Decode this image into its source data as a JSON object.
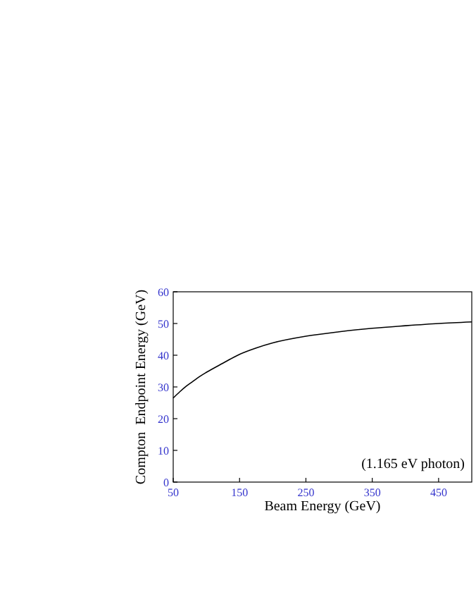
{
  "chart_data": {
    "type": "line",
    "xlabel": "Beam Energy (GeV)",
    "ylabel": "Compton  Endpoint Energy (GeV)",
    "x": [
      50,
      60,
      70,
      80,
      90,
      100,
      125,
      150,
      175,
      200,
      250,
      300,
      350,
      400,
      450,
      500
    ],
    "series": [
      {
        "color": "#000000",
        "values": [
          26.5,
          28.5,
          30.3,
          31.8,
          33.3,
          34.6,
          37.5,
          40.3,
          42.3,
          43.9,
          46,
          47.4,
          48.5,
          49.3,
          50,
          50.5
        ]
      }
    ],
    "xlim": [
      50,
      500
    ],
    "xticks": [
      50,
      150,
      250,
      350,
      450
    ],
    "ylim": [
      0,
      60
    ],
    "yticks": [
      0,
      10,
      20,
      30,
      40,
      50,
      60
    ],
    "annotations": [
      "(1.165 eV photon)"
    ],
    "grid": false,
    "marker": "none",
    "line_style": "solid"
  }
}
